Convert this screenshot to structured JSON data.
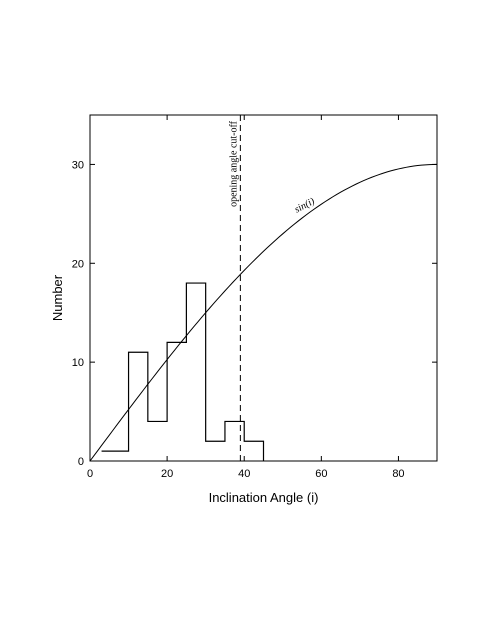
{
  "chart_data": {
    "type": "line",
    "xlabel": "Inclination Angle (i)",
    "ylabel": "Number",
    "xlim": [
      0,
      90
    ],
    "ylim": [
      0,
      35
    ],
    "xticks": [
      0,
      20,
      40,
      60,
      80
    ],
    "yticks": [
      0,
      10,
      20,
      30
    ],
    "histogram": {
      "bin_edges": [
        3,
        10,
        15,
        20,
        25,
        30,
        35,
        40,
        45
      ],
      "counts": [
        1,
        11,
        4,
        12,
        18,
        2,
        4,
        2
      ]
    },
    "sin_curve": {
      "label": "sin(i)",
      "scale": 30
    },
    "cutoff": {
      "x": 39,
      "label": "opening angle cut-off"
    },
    "grid": false
  }
}
